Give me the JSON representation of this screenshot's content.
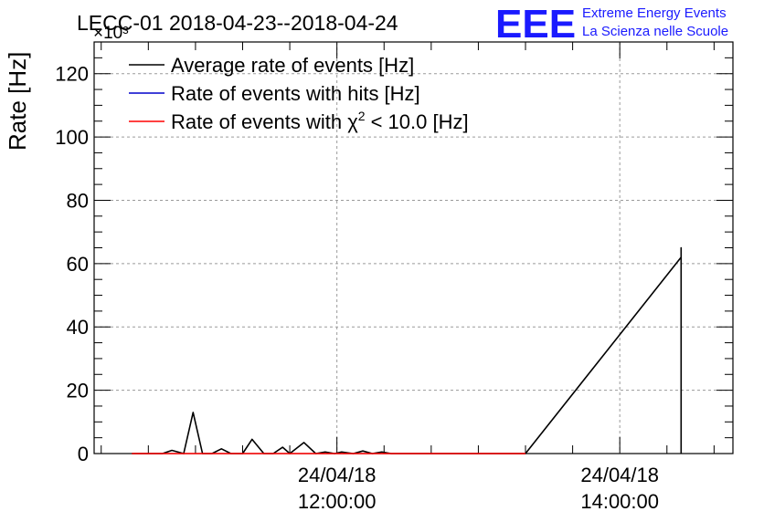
{
  "header": {
    "title": "LECC-01 2018-04-23--2018-04-24",
    "exponent": "×10³",
    "logo_text": "EEE",
    "logo_line1": "Extreme Energy Events",
    "logo_line2": "La Scienza nelle Scuole",
    "logo_color": "#1a1aff"
  },
  "chart_data": {
    "type": "line",
    "ylabel": "Rate [Hz]",
    "ylim": [
      0,
      130
    ],
    "y_ticks": [
      0,
      20,
      40,
      60,
      80,
      100,
      120
    ],
    "xlim": [
      "2018-04-24 10:17:00",
      "2018-04-24 14:48:00"
    ],
    "x_ticks": [
      {
        "x": "2018-04-24 12:00:00",
        "date": "24/04/18",
        "time": "12:00:00"
      },
      {
        "x": "2018-04-24 14:00:00",
        "date": "24/04/18",
        "time": "14:00:00"
      }
    ],
    "grid": true,
    "legend_position": "top-left",
    "series": [
      {
        "name": "Average rate of events [Hz]",
        "color": "#000000",
        "points": [
          [
            "2018-04-24 10:33:00",
            0
          ],
          [
            "2018-04-24 10:46:00",
            0
          ],
          [
            "2018-04-24 10:50:00",
            1
          ],
          [
            "2018-04-24 10:55:00",
            0
          ],
          [
            "2018-04-24 10:59:00",
            13
          ],
          [
            "2018-04-24 11:03:00",
            0
          ],
          [
            "2018-04-24 11:07:00",
            0
          ],
          [
            "2018-04-24 11:11:00",
            1.5
          ],
          [
            "2018-04-24 11:15:00",
            0
          ],
          [
            "2018-04-24 11:20:00",
            0
          ],
          [
            "2018-04-24 11:24:00",
            4.5
          ],
          [
            "2018-04-24 11:29:00",
            0
          ],
          [
            "2018-04-24 11:33:00",
            0
          ],
          [
            "2018-04-24 11:37:00",
            2
          ],
          [
            "2018-04-24 11:40:00",
            0
          ],
          [
            "2018-04-24 11:46:00",
            3.5
          ],
          [
            "2018-04-24 11:51:00",
            0
          ],
          [
            "2018-04-24 11:55:00",
            0.5
          ],
          [
            "2018-04-24 11:59:00",
            0
          ],
          [
            "2018-04-24 12:02:00",
            0.5
          ],
          [
            "2018-04-24 12:07:00",
            0
          ],
          [
            "2018-04-24 12:11:00",
            0.8
          ],
          [
            "2018-04-24 12:15:00",
            0
          ],
          [
            "2018-04-24 12:19:00",
            0.5
          ],
          [
            "2018-04-24 12:23:00",
            0
          ],
          [
            "2018-04-24 12:27:00",
            0
          ],
          [
            "2018-04-24 13:20:00",
            0
          ],
          [
            "2018-04-24 14:26:00",
            62
          ],
          [
            "2018-04-24 14:26:00",
            65
          ],
          [
            "2018-04-24 14:26:00",
            0
          ]
        ]
      },
      {
        "name": "Rate of events with hits [Hz]",
        "color": "#0000cc",
        "points": []
      },
      {
        "name": "Rate of events with χ² < 10.0 [Hz]",
        "color": "#ff0000",
        "points": [
          [
            "2018-04-24 10:33:00",
            0
          ],
          [
            "2018-04-24 13:20:00",
            0
          ]
        ]
      }
    ],
    "legend_names": [
      "Average rate of events [Hz]",
      "Rate of events with hits [Hz]",
      "Rate of events with χ"
    ],
    "legend_suffix": "< 10.0 [Hz]",
    "legend_sup": "2"
  }
}
